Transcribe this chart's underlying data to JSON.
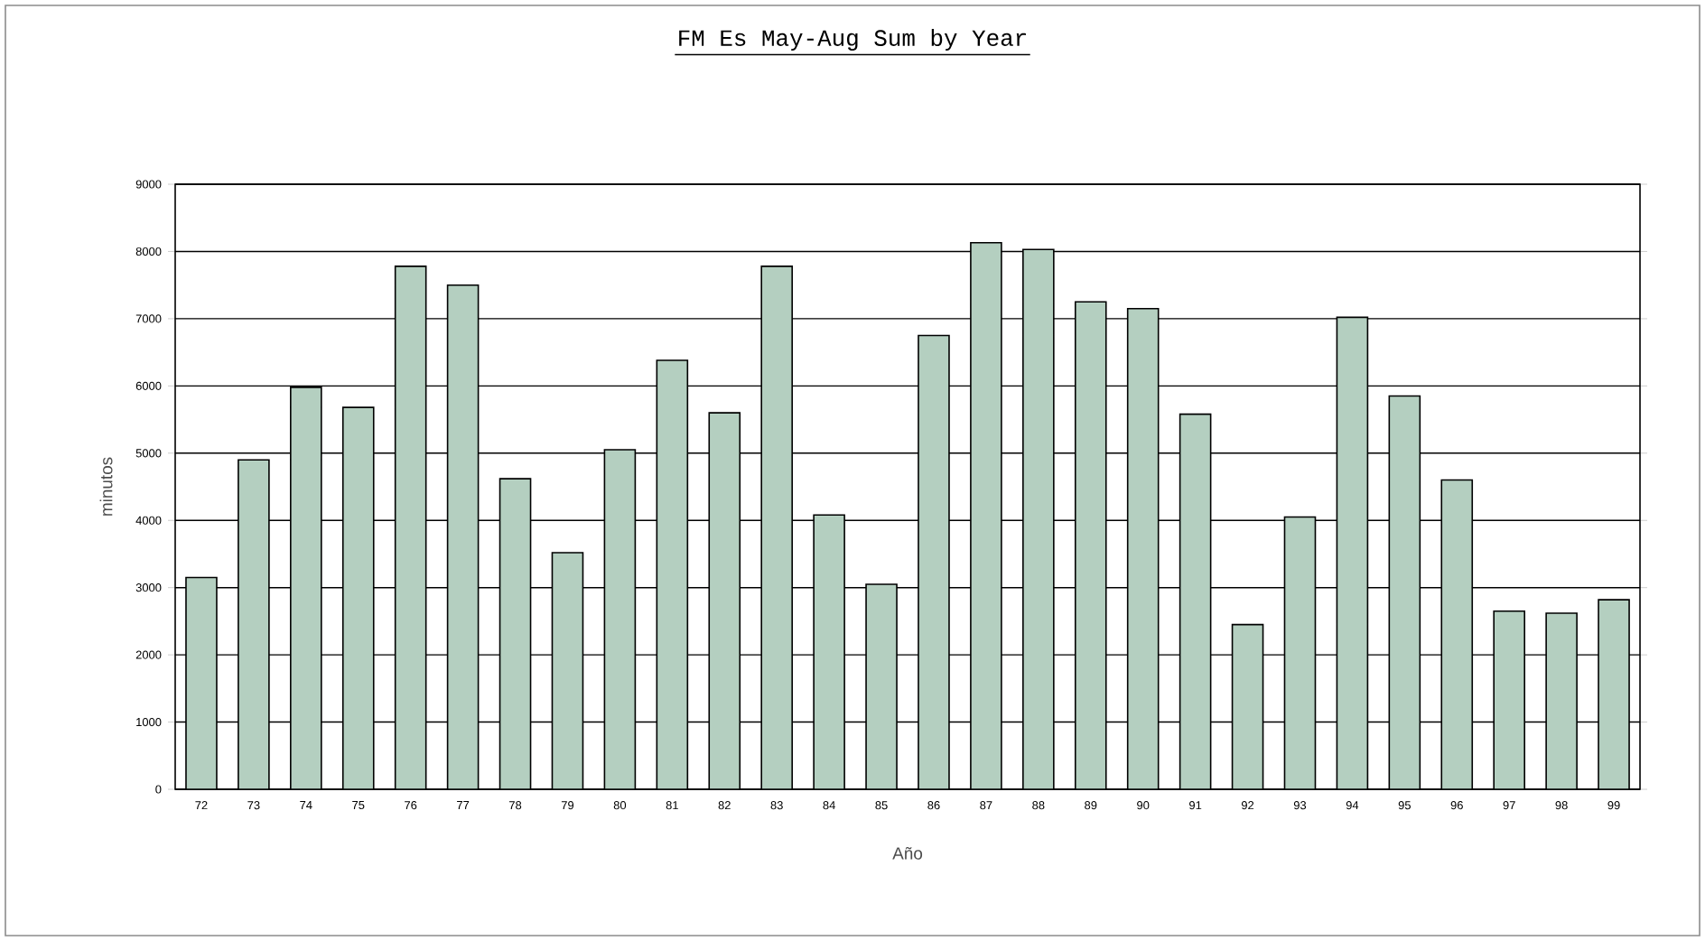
{
  "chart_data": {
    "type": "bar",
    "title": "FM Es May-Aug Sum by Year",
    "xlabel": "Año",
    "ylabel": "minutos",
    "categories": [
      "72",
      "73",
      "74",
      "75",
      "76",
      "77",
      "78",
      "79",
      "80",
      "81",
      "82",
      "83",
      "84",
      "85",
      "86",
      "87",
      "88",
      "89",
      "90",
      "91",
      "92",
      "93",
      "94",
      "95",
      "96",
      "97",
      "98",
      "99"
    ],
    "values": [
      3150,
      4900,
      5980,
      5680,
      7780,
      7500,
      4620,
      3520,
      5050,
      6380,
      5600,
      7780,
      4080,
      3050,
      6750,
      8130,
      8030,
      7250,
      7150,
      5580,
      2450,
      4050,
      7020,
      5850,
      4600,
      2650,
      2620,
      2820
    ],
    "color": "#b4cfc0",
    "ylim": [
      0,
      9000
    ],
    "yticks": [
      0,
      1000,
      2000,
      3000,
      4000,
      5000,
      6000,
      7000,
      8000,
      9000
    ],
    "grid": "y"
  }
}
